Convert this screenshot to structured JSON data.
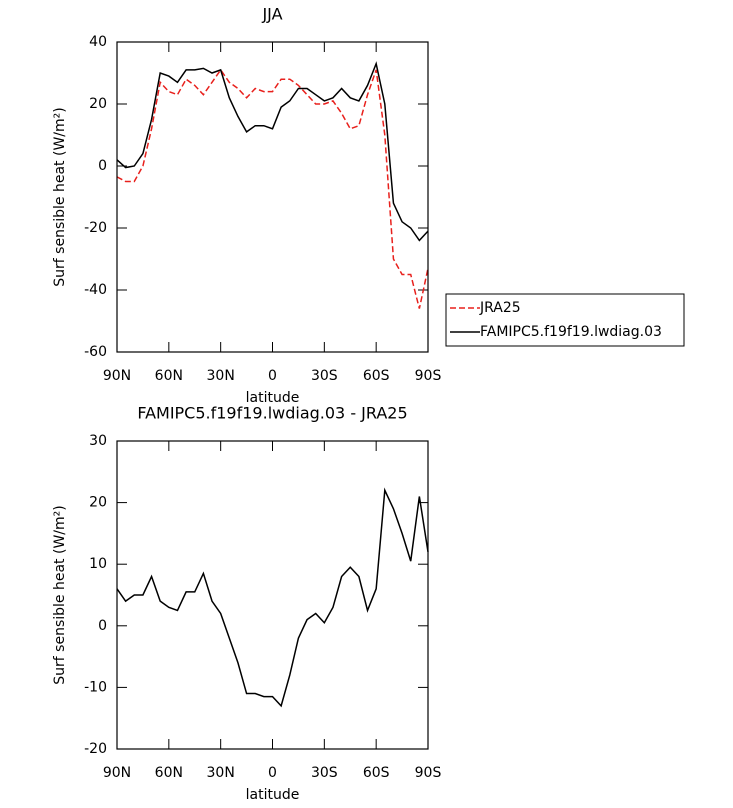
{
  "chart_data": [
    {
      "type": "line",
      "title": "JJA",
      "xlabel": "latitude",
      "ylabel": "Surf sensible heat (W/m²)",
      "x": [
        90,
        85,
        80,
        75,
        70,
        65,
        60,
        55,
        50,
        45,
        40,
        35,
        30,
        25,
        20,
        15,
        10,
        5,
        0,
        -5,
        -10,
        -15,
        -20,
        -25,
        -30,
        -35,
        -40,
        -45,
        -50,
        -55,
        -60,
        -65,
        -70,
        -75,
        -80,
        -85,
        -90
      ],
      "series": [
        {
          "name": "JRA25",
          "color": "#e8201c",
          "dash": true,
          "values": [
            -3.5,
            -5,
            -5,
            0,
            12,
            27,
            24,
            23,
            28,
            26,
            23,
            27,
            31,
            27,
            25,
            22,
            25,
            24,
            24,
            28,
            28,
            26,
            23,
            20,
            20,
            21,
            17,
            12,
            13,
            23,
            31,
            10,
            -30,
            -35,
            -35,
            -46,
            -33
          ]
        },
        {
          "name": "FAMIPC5.f19f19.lwdiag.03",
          "color": "#000000",
          "dash": false,
          "values": [
            2,
            -0.5,
            0,
            4,
            15,
            30,
            29,
            27,
            31,
            31,
            31.5,
            30,
            31,
            22,
            16,
            11,
            13,
            13,
            12,
            19,
            21,
            25,
            25,
            23,
            21,
            22,
            25,
            22,
            21,
            26,
            33,
            20,
            -12,
            -18,
            -20,
            -24,
            -21
          ]
        }
      ],
      "xlim": [
        90,
        -90
      ],
      "xticks": [
        {
          "value": 90,
          "label": "90N"
        },
        {
          "value": 60,
          "label": "60N"
        },
        {
          "value": 30,
          "label": "30N"
        },
        0,
        {
          "value": -30,
          "label": "30S"
        },
        {
          "value": -60,
          "label": "60S"
        },
        {
          "value": -90,
          "label": "90S"
        }
      ],
      "ylim": [
        -60,
        40
      ],
      "yticks": [
        -60,
        -40,
        -20,
        0,
        20,
        40
      ],
      "legend": "right"
    },
    {
      "type": "line",
      "title": "FAMIPC5.f19f19.lwdiag.03 - JRA25",
      "xlabel": "latitude",
      "ylabel": "Surf sensible heat (W/m²)",
      "x": [
        90,
        85,
        80,
        75,
        70,
        65,
        60,
        55,
        50,
        45,
        40,
        35,
        30,
        25,
        20,
        15,
        10,
        5,
        0,
        -5,
        -10,
        -15,
        -20,
        -25,
        -30,
        -35,
        -40,
        -45,
        -50,
        -55,
        -60,
        -65,
        -70,
        -75,
        -80,
        -85,
        -90
      ],
      "series": [
        {
          "color": "#000000",
          "dash": false,
          "values": [
            6,
            4,
            5,
            5,
            8,
            4,
            3,
            2.5,
            5.5,
            5.5,
            8.5,
            4,
            2,
            -2,
            -6,
            -11,
            -11,
            -11.5,
            -11.5,
            -13,
            -8,
            -2,
            1,
            2,
            0.5,
            3,
            8,
            9.5,
            8,
            2.5,
            6,
            22,
            19,
            15,
            10.5,
            21,
            12
          ]
        }
      ],
      "xlim": [
        90,
        -90
      ],
      "xticks": [
        {
          "value": 90,
          "label": "90N"
        },
        {
          "value": 60,
          "label": "60N"
        },
        {
          "value": 30,
          "label": "30N"
        },
        0,
        {
          "value": -30,
          "label": "30S"
        },
        {
          "value": -60,
          "label": "60S"
        },
        {
          "value": -90,
          "label": "90S"
        }
      ],
      "ylim": [
        -20,
        30
      ],
      "yticks": [
        -20,
        -10,
        0,
        10,
        20,
        30
      ]
    }
  ]
}
